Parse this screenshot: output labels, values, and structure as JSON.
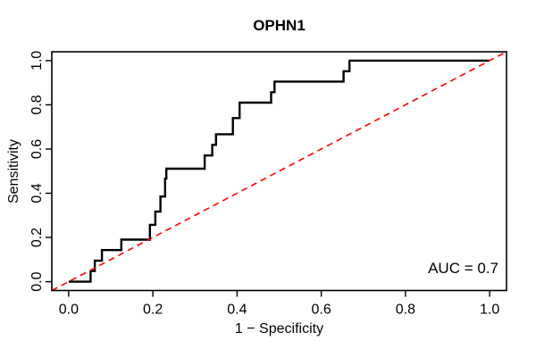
{
  "figure": {
    "title": "OPHN1",
    "xlabel": "1 − Specificity",
    "ylabel": "Sensitivity",
    "annotation": "AUC = 0.7"
  },
  "chart_data": {
    "type": "line",
    "subtype": "ROC step curve",
    "title": "OPHN1",
    "xlabel": "1 − Specificity",
    "ylabel": "Sensitivity",
    "xlim": [
      0,
      1
    ],
    "ylim": [
      0,
      1
    ],
    "xticks": [
      "0.0",
      "0.2",
      "0.4",
      "0.6",
      "0.8",
      "1.0"
    ],
    "yticks": [
      "0.0",
      "0.2",
      "0.4",
      "0.6",
      "0.8",
      "1.0"
    ],
    "grid": false,
    "annotation": "AUC = 0.7",
    "auc": 0.7,
    "colors": {
      "curve": "#000000",
      "diagonal": "#ff0000",
      "axis": "#000000",
      "background": "#ffffff"
    },
    "series": [
      {
        "name": "ROC curve",
        "style": "step-solid",
        "color": "#000000",
        "line_width": 2.4,
        "points": [
          [
            0.0,
            0.0
          ],
          [
            0.052,
            0.0
          ],
          [
            0.052,
            0.048
          ],
          [
            0.062,
            0.048
          ],
          [
            0.062,
            0.095
          ],
          [
            0.079,
            0.095
          ],
          [
            0.079,
            0.143
          ],
          [
            0.125,
            0.143
          ],
          [
            0.125,
            0.19
          ],
          [
            0.193,
            0.19
          ],
          [
            0.193,
            0.257
          ],
          [
            0.206,
            0.257
          ],
          [
            0.206,
            0.317
          ],
          [
            0.218,
            0.317
          ],
          [
            0.218,
            0.385
          ],
          [
            0.229,
            0.385
          ],
          [
            0.229,
            0.466
          ],
          [
            0.232,
            0.466
          ],
          [
            0.232,
            0.511
          ],
          [
            0.323,
            0.511
          ],
          [
            0.323,
            0.571
          ],
          [
            0.341,
            0.571
          ],
          [
            0.341,
            0.619
          ],
          [
            0.35,
            0.619
          ],
          [
            0.35,
            0.667
          ],
          [
            0.39,
            0.667
          ],
          [
            0.39,
            0.74
          ],
          [
            0.406,
            0.74
          ],
          [
            0.406,
            0.81
          ],
          [
            0.481,
            0.81
          ],
          [
            0.481,
            0.857
          ],
          [
            0.489,
            0.857
          ],
          [
            0.489,
            0.905
          ],
          [
            0.653,
            0.905
          ],
          [
            0.653,
            0.952
          ],
          [
            0.667,
            0.952
          ],
          [
            0.667,
            1.0
          ],
          [
            1.0,
            1.0
          ]
        ]
      },
      {
        "name": "chance diagonal",
        "style": "dashed",
        "color": "#ff0000",
        "line_width": 1.6,
        "points": [
          [
            0.0,
            0.0
          ],
          [
            1.0,
            1.0
          ]
        ]
      }
    ]
  }
}
